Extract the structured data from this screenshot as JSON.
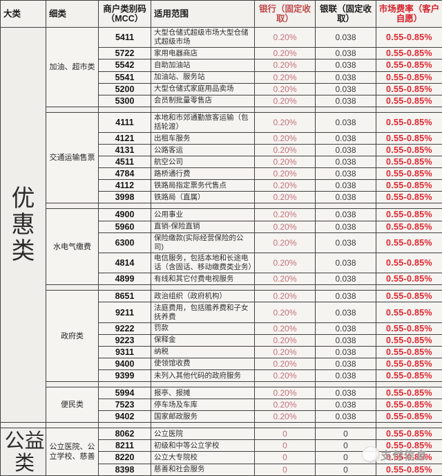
{
  "header": {
    "columns": [
      "大类",
      "细类",
      "商户类别码（MCC）",
      "适用范围",
      "银行（固定收取）",
      "银联（固定收取）",
      "市场费率（客户自愿）"
    ]
  },
  "table": {
    "majors": [
      {
        "label": "优惠类",
        "subs": [
          {
            "label": "加油、超市类",
            "rows": [
              {
                "mcc": "5411",
                "desc": "大型仓储式超级市场大型仓储式超级市场",
                "bank": "0.20%",
                "unionpay": "0.038",
                "market": "0.55-0.85%"
              },
              {
                "mcc": "5722",
                "desc": "家用电器商店",
                "bank": "0.20%",
                "unionpay": "0.038",
                "market": "0.55-0.85%"
              },
              {
                "mcc": "5542",
                "desc": "自助加油站",
                "bank": "0.20%",
                "unionpay": "0.038",
                "market": "0.55-0.85%"
              },
              {
                "mcc": "5541",
                "desc": "加油站、服务站",
                "bank": "0.20%",
                "unionpay": "0.038",
                "market": "0.55-0.85%"
              },
              {
                "mcc": "5200",
                "desc": "大型仓储式家庭用品卖场",
                "bank": "0.20%",
                "unionpay": "0.038",
                "market": "0.55-0.85%"
              },
              {
                "mcc": "5300",
                "desc": "会员制批量零售店",
                "bank": "0.20%",
                "unionpay": "0.038",
                "market": "0.55-0.85%"
              }
            ]
          },
          {
            "label": "交通运输售票",
            "rows": [
              {
                "mcc": "4111",
                "desc": "本地和市郊通勤旅客运输（包括轮渡）",
                "bank": "0.20%",
                "unionpay": "0.038",
                "market": "0.55-0.85%"
              },
              {
                "mcc": "4121",
                "desc": "出租车服务",
                "bank": "0.20%",
                "unionpay": "0.038",
                "market": "0.55-0.85%"
              },
              {
                "mcc": "4131",
                "desc": "公路客运",
                "bank": "0.20%",
                "unionpay": "0.038",
                "market": "0.55-0.85%"
              },
              {
                "mcc": "4511",
                "desc": "航空公司",
                "bank": "0.20%",
                "unionpay": "0.038",
                "market": "0.55-0.85%"
              },
              {
                "mcc": "4784",
                "desc": "路桥通行费",
                "bank": "0.20%",
                "unionpay": "0.038",
                "market": "0.55-0.85%"
              },
              {
                "mcc": "4112",
                "desc": "铁路局指定票务代售点",
                "bank": "0.20%",
                "unionpay": "0.038",
                "market": "0.55-0.85%"
              },
              {
                "mcc": "3998",
                "desc": "铁路局（直属）",
                "bank": "0.20%",
                "unionpay": "0.038",
                "market": "0.55-0.85%"
              }
            ]
          },
          {
            "label": "水电气缴费",
            "rows": [
              {
                "mcc": "4900",
                "desc": "公用事业",
                "bank": "0.20%",
                "unionpay": "0.038",
                "market": "0.55-0.85%"
              },
              {
                "mcc": "5960",
                "desc": "直销-保险直销",
                "bank": "0.20%",
                "unionpay": "0.038",
                "market": "0.55-0.85%"
              },
              {
                "mcc": "6300",
                "desc": "保险缴款(实际经营保险的公司)",
                "bank": "0.20%",
                "unionpay": "0.038",
                "market": "0.55-0.85%"
              },
              {
                "mcc": "4814",
                "desc": "电信服务，包括本地和长途电话（含固话、移动缴费类业务）",
                "bank": "0.20%",
                "unionpay": "0.038",
                "market": "0.55-0.85%"
              },
              {
                "mcc": "4899",
                "desc": "有线和其它付费电视服务",
                "bank": "0.20%",
                "unionpay": "0.038",
                "market": "0.55-0.85%"
              }
            ]
          },
          {
            "label": "政府类",
            "rows": [
              {
                "mcc": "8651",
                "desc": "政治组织（政府机构）",
                "bank": "0.20%",
                "unionpay": "0.038",
                "market": "0.55-0.85%"
              },
              {
                "mcc": "9211",
                "desc": "法庭费用，包括赡养费和子女抚养费",
                "bank": "0.20%",
                "unionpay": "0.038",
                "market": "0.55-0.85%"
              },
              {
                "mcc": "9222",
                "desc": "罚款",
                "bank": "0.20%",
                "unionpay": "0.038",
                "market": "0.55-0.85%"
              },
              {
                "mcc": "9223",
                "desc": "保释金",
                "bank": "0.20%",
                "unionpay": "0.038",
                "market": "0.55-0.85%"
              },
              {
                "mcc": "9311",
                "desc": "纳税",
                "bank": "0.20%",
                "unionpay": "0.038",
                "market": "0.55-0.85%"
              },
              {
                "mcc": "9400",
                "desc": "使领馆收费",
                "bank": "0.20%",
                "unionpay": "0.038",
                "market": "0.55-0.85%"
              },
              {
                "mcc": "9399",
                "desc": "未列入其他代码的政府服务",
                "bank": "0.20%",
                "unionpay": "0.038",
                "market": "0.55-0.85%"
              }
            ]
          },
          {
            "label": "便民类",
            "rows": [
              {
                "mcc": "5994",
                "desc": "报亭、报摊",
                "bank": "0.20%",
                "unionpay": "0.038",
                "market": "0.55-0.85%"
              },
              {
                "mcc": "7523",
                "desc": "停车场及车库",
                "bank": "0.20%",
                "unionpay": "0.038",
                "market": "0.55-0.85%"
              },
              {
                "mcc": "9402",
                "desc": "国家邮政服务",
                "bank": "0.20%",
                "unionpay": "0.038",
                "market": "0.55-0.85%"
              }
            ]
          }
        ]
      },
      {
        "label": "公益类",
        "subs": [
          {
            "label": "公立医院、公立学校、慈善",
            "rows": [
              {
                "mcc": "8062",
                "desc": "公立医院",
                "bank": "0",
                "unionpay": "0",
                "market": "0.55-0.85%"
              },
              {
                "mcc": "8211",
                "desc": "初级和中等公立学校",
                "bank": "0",
                "unionpay": "0",
                "market": "0.55-0.85%"
              },
              {
                "mcc": "8220",
                "desc": "公立大专院校",
                "bank": "0",
                "unionpay": "0",
                "market": "0.55-0.85%"
              },
              {
                "mcc": "8398",
                "desc": "慈善和社会服务",
                "bank": "0",
                "unionpay": "0",
                "market": "0.55-0.85%"
              }
            ]
          }
        ]
      }
    ]
  },
  "watermark": {
    "text": "支付信息"
  },
  "colors": {
    "market_rate_red": "#e1242d",
    "bank_rate_pink": "#c2707a",
    "bank_header_red": "#bf4a4a",
    "market_header_red": "#d6202a",
    "unionpay_value_gray": "#3a3a3a",
    "border_dark": "#3f3f3f",
    "background": "#f4f2ef"
  }
}
